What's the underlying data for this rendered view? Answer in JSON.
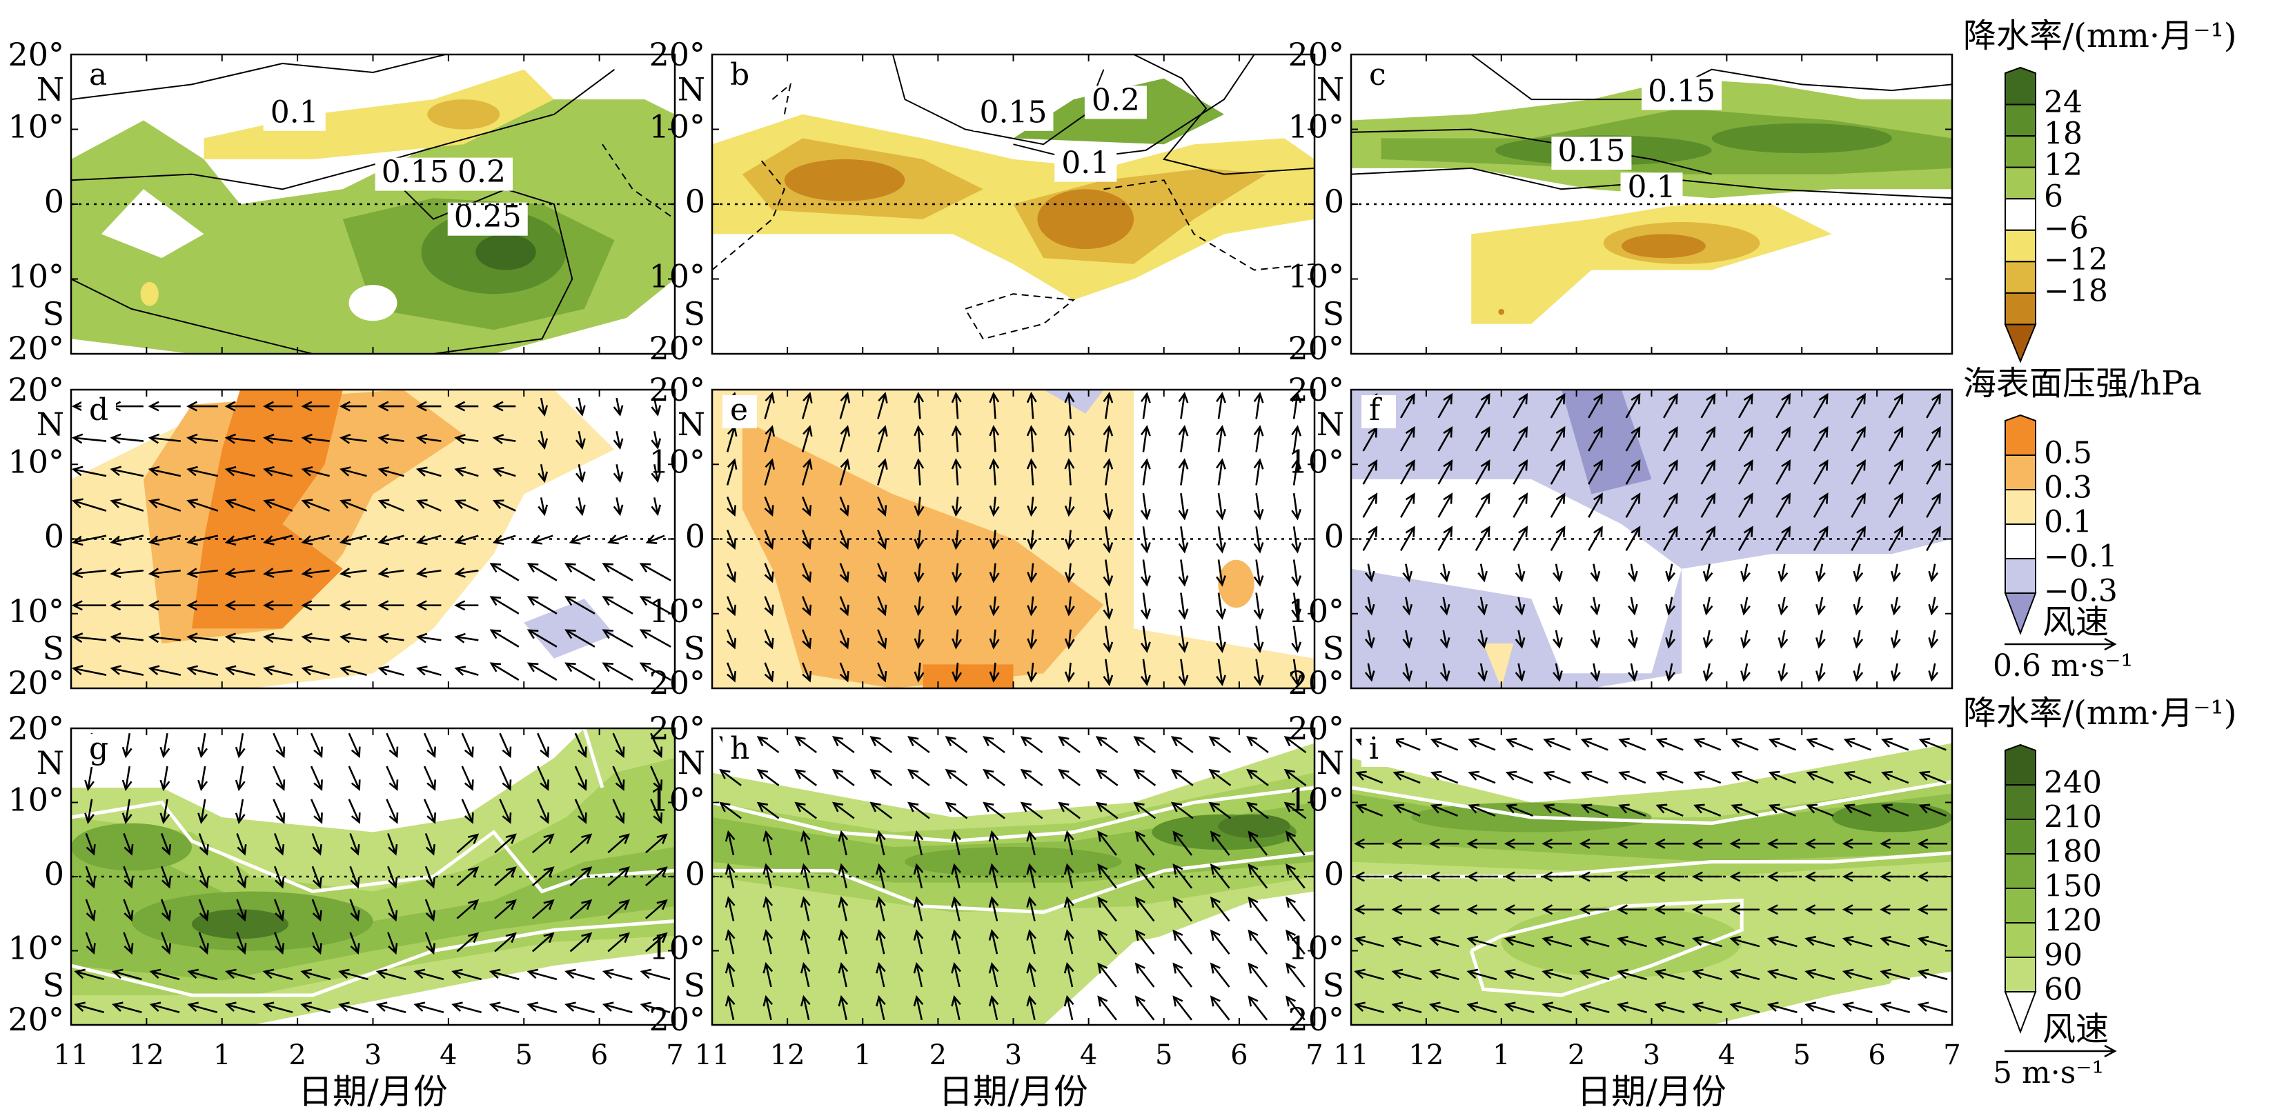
{
  "chart_data": {
    "type": "heatmap",
    "xlabel": "日期/月份",
    "x_ticks": [
      "11",
      "12",
      "1",
      "2",
      "3",
      "4",
      "5",
      "6",
      "7"
    ],
    "y_ticks": [
      "20°",
      "N",
      "10°",
      "0",
      "10°",
      "S",
      "20°"
    ],
    "panel_letters": [
      "a",
      "b",
      "c",
      "d",
      "e",
      "f",
      "g",
      "h",
      "i"
    ],
    "colorbars": [
      {
        "title": "降水率/(mm·月⁻¹)",
        "labels": [
          "24",
          "18",
          "12",
          "6",
          "−6",
          "−12",
          "−18"
        ],
        "colors": [
          "#3f6b20",
          "#5b8e2b",
          "#7cab3a",
          "#a5c955",
          "#ffffff",
          "#f3e26c",
          "#e0b840",
          "#c8861e",
          "#a85a0c"
        ]
      },
      {
        "title": "海表面压强/hPa",
        "labels": [
          "0.5",
          "0.3",
          "0.1",
          "−0.1",
          "−0.3"
        ],
        "colors": [
          "#f28c28",
          "#f8b860",
          "#fde8a8",
          "#ffffff",
          "#c8c8e8",
          "#9898cc"
        ],
        "vector_key": {
          "title": "风速",
          "value": "0.6 m·s⁻¹"
        }
      },
      {
        "title": "降水率/(mm·月⁻¹)",
        "labels": [
          "240",
          "210",
          "180",
          "150",
          "120",
          "90",
          "60"
        ],
        "colors": [
          "#3a5e1c",
          "#4c7a25",
          "#5e922d",
          "#76a83a",
          "#8fbd4a",
          "#a9cf5e",
          "#c2de7a",
          "#ffffff"
        ],
        "vector_key": {
          "title": "风速",
          "value": "5 m·s⁻¹"
        }
      }
    ],
    "contour_labels": {
      "a": [
        "0.1",
        "0.15",
        "0.2",
        "0.25"
      ],
      "b": [
        "0.15",
        "0.2",
        "0.1"
      ],
      "c": [
        "0.15",
        "0.15",
        "0.1"
      ]
    }
  }
}
